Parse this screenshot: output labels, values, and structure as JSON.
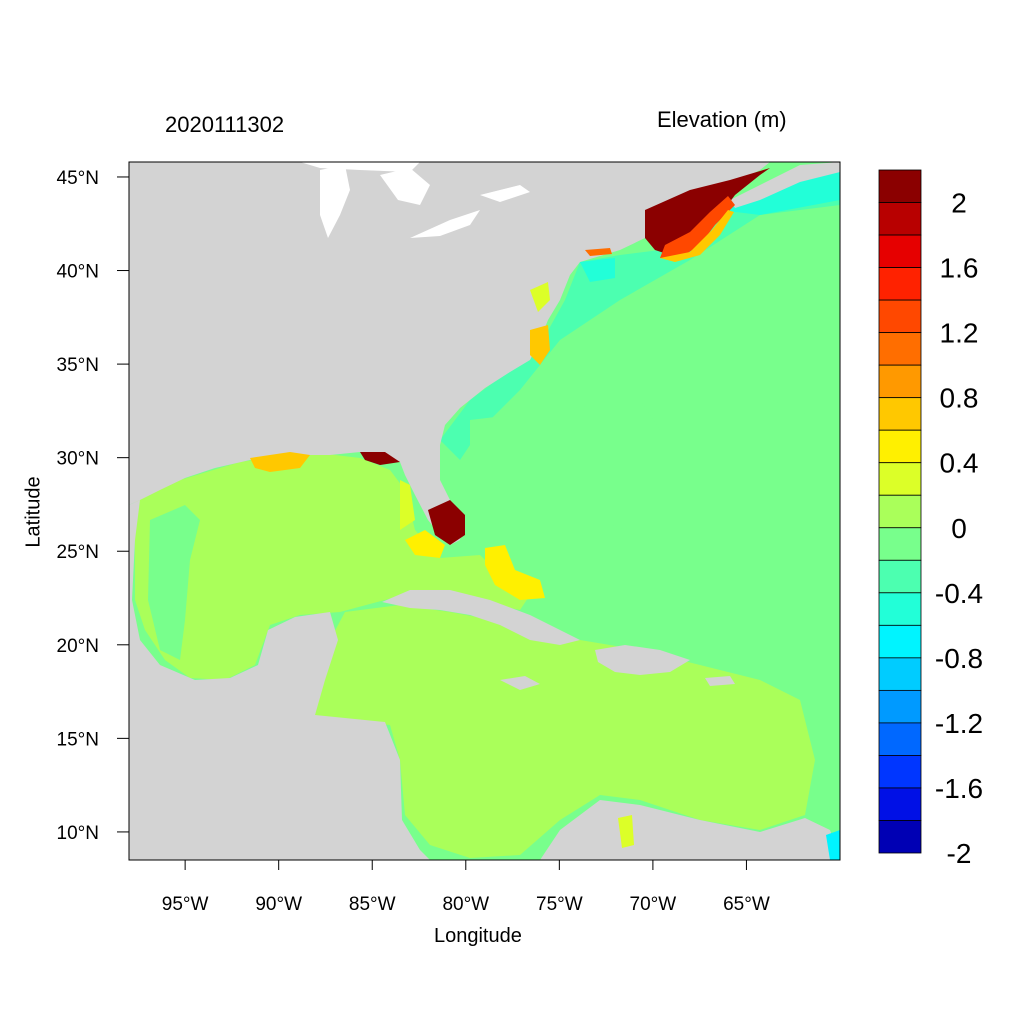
{
  "titles": {
    "left": "2020111302",
    "right": "Elevation (m)"
  },
  "axes": {
    "xlabel": "Longitude",
    "ylabel": "Latitude",
    "x_ticks": [
      {
        "value": -95,
        "label": "95°W"
      },
      {
        "value": -90,
        "label": "90°W"
      },
      {
        "value": -85,
        "label": "85°W"
      },
      {
        "value": -80,
        "label": "80°W"
      },
      {
        "value": -75,
        "label": "75°W"
      },
      {
        "value": -70,
        "label": "70°W"
      },
      {
        "value": -65,
        "label": "65°W"
      }
    ],
    "y_ticks": [
      {
        "value": 45,
        "label": "45°N"
      },
      {
        "value": 40,
        "label": "40°N"
      },
      {
        "value": 35,
        "label": "35°N"
      },
      {
        "value": 30,
        "label": "30°N"
      },
      {
        "value": 25,
        "label": "25°N"
      },
      {
        "value": 20,
        "label": "20°N"
      },
      {
        "value": 15,
        "label": "15°N"
      },
      {
        "value": 10,
        "label": "10°N"
      }
    ],
    "xlim": [
      -98,
      -60
    ],
    "ylim": [
      8.5,
      45.8
    ]
  },
  "colorbar": {
    "colors_top_to_bottom": [
      "#8b0000",
      "#b80000",
      "#e60000",
      "#ff2200",
      "#ff4800",
      "#ff6e00",
      "#ff9900",
      "#ffc800",
      "#fff000",
      "#dcff28",
      "#aaff5a",
      "#78ff8c",
      "#4cffb0",
      "#22ffd8",
      "#00f4ff",
      "#00ccff",
      "#009aff",
      "#0068ff",
      "#0036ff",
      "#0010e6",
      "#0000b4"
    ],
    "labels": [
      "2",
      "1.6",
      "1.2",
      "0.8",
      "0.4",
      "0",
      "-0.4",
      "-0.8",
      "-1.2",
      "-1.6",
      "-2"
    ]
  },
  "map_colors": {
    "land": "#d3d3d3",
    "lakes": "#ffffff",
    "atlantic": "#78ff8c",
    "atlantic_near_coast": "#4cffb0",
    "shelf": "#22ffd8",
    "gulf_caribbean": "#aaff5a",
    "gulf_inner": "#78ff8c",
    "surge_high": "#8b0000",
    "surge_mid": "#ff4800",
    "surge_low": "#ffc800",
    "surge_yellow": "#fff000",
    "surge_lime": "#dcff28"
  }
}
